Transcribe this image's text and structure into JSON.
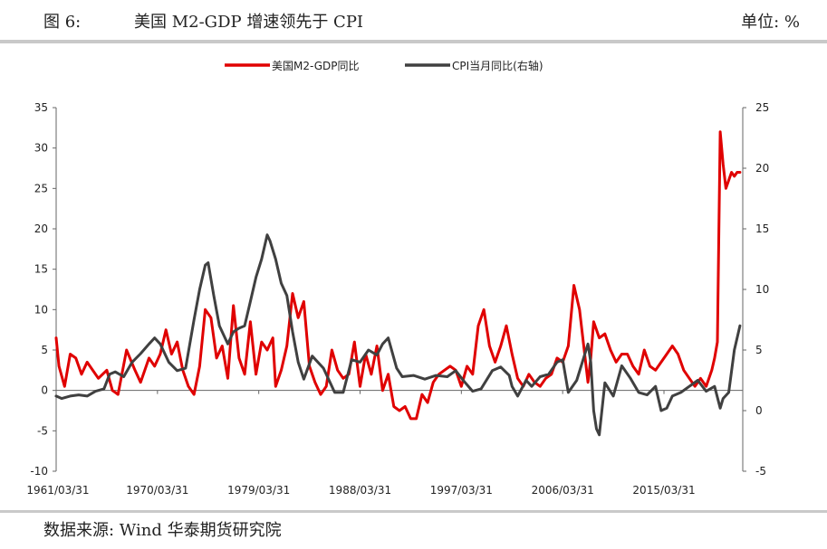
{
  "header": {
    "figure_no": "图 6:",
    "title": "美国 M2-GDP 增速领先于 CPI",
    "unit": "单位: %"
  },
  "footer": {
    "source": "数据来源: Wind 华泰期货研究院"
  },
  "chart_data": {
    "type": "line",
    "title": "美国 M2-GDP 增速领先于 CPI",
    "legend_position": "top-center",
    "grid": false,
    "x_range": [
      "1961/03/31",
      "2022/03/31"
    ],
    "x_tick_labels": [
      "1961/03/31",
      "1970/03/31",
      "1979/03/31",
      "1988/03/31",
      "1997/03/31",
      "2006/03/31",
      "2015/03/31"
    ],
    "x_ticks": [
      1961.25,
      1970.25,
      1979.25,
      1988.25,
      1997.25,
      2006.25,
      2015.25
    ],
    "left_axis": {
      "ylim": [
        -10,
        35
      ],
      "ticks": [
        -10,
        -5,
        0,
        5,
        10,
        15,
        20,
        25,
        30,
        35
      ]
    },
    "right_axis": {
      "ylim": [
        -5,
        25
      ],
      "ticks": [
        -5,
        0,
        5,
        10,
        15,
        20,
        25
      ]
    },
    "series": [
      {
        "name": "美国M2-GDP同比",
        "axis": "left",
        "color": "#e00000",
        "x": [
          1961.25,
          1961.5,
          1962.0,
          1962.5,
          1963.0,
          1963.5,
          1964.0,
          1965.0,
          1965.75,
          1966.25,
          1966.75,
          1967.5,
          1968.25,
          1968.75,
          1969.5,
          1970.0,
          1970.5,
          1971.0,
          1971.5,
          1972.0,
          1972.5,
          1973.0,
          1973.5,
          1974.0,
          1974.5,
          1975.0,
          1975.5,
          1976.0,
          1976.5,
          1977.0,
          1977.5,
          1978.0,
          1978.5,
          1979.0,
          1979.5,
          1980.0,
          1980.5,
          1980.75,
          1981.25,
          1981.75,
          1982.25,
          1982.75,
          1983.25,
          1983.75,
          1984.25,
          1984.75,
          1985.25,
          1985.75,
          1986.25,
          1986.75,
          1987.25,
          1987.75,
          1988.25,
          1988.75,
          1989.25,
          1989.75,
          1990.25,
          1990.75,
          1991.25,
          1991.75,
          1992.25,
          1992.75,
          1993.25,
          1993.75,
          1994.25,
          1994.75,
          1995.25,
          1995.75,
          1996.25,
          1996.75,
          1997.25,
          1997.75,
          1998.25,
          1998.75,
          1999.25,
          1999.75,
          2000.25,
          2000.75,
          2001.25,
          2001.75,
          2002.25,
          2002.75,
          2003.25,
          2003.75,
          2004.25,
          2004.75,
          2005.25,
          2005.75,
          2006.25,
          2006.75,
          2007.25,
          2007.75,
          2008.25,
          2008.5,
          2008.75,
          2009.0,
          2009.5,
          2010.0,
          2010.5,
          2011.0,
          2011.5,
          2012.0,
          2012.5,
          2013.0,
          2013.5,
          2014.0,
          2014.5,
          2015.0,
          2015.5,
          2016.0,
          2016.5,
          2017.0,
          2017.5,
          2018.0,
          2018.5,
          2019.0,
          2019.5,
          2019.75,
          2020.0,
          2020.25,
          2020.5,
          2020.75,
          2021.0,
          2021.25,
          2021.5,
          2021.75,
          2022.0
        ],
        "values": [
          6.5,
          3.0,
          0.5,
          4.5,
          4.0,
          2.0,
          3.5,
          1.5,
          2.5,
          0.0,
          -0.5,
          5.0,
          2.5,
          1.0,
          4.0,
          3.0,
          4.5,
          7.5,
          4.5,
          6.0,
          2.5,
          0.5,
          -0.5,
          3.0,
          10.0,
          9.0,
          4.0,
          5.5,
          1.5,
          10.5,
          4.0,
          2.0,
          8.5,
          2.0,
          6.0,
          5.0,
          6.5,
          0.5,
          2.5,
          5.5,
          12.0,
          9.0,
          11.0,
          3.0,
          1.0,
          -0.5,
          0.5,
          5.0,
          2.5,
          1.5,
          2.0,
          6.0,
          0.5,
          4.5,
          2.0,
          5.5,
          0.0,
          2.0,
          -2.0,
          -2.5,
          -2.0,
          -3.5,
          -3.5,
          -0.5,
          -1.5,
          1.0,
          2.0,
          2.5,
          3.0,
          2.5,
          0.5,
          3.0,
          2.0,
          8.0,
          10.0,
          5.5,
          3.5,
          5.5,
          8.0,
          4.5,
          1.5,
          0.5,
          2.0,
          1.0,
          0.5,
          1.5,
          2.0,
          4.0,
          3.5,
          5.5,
          13.0,
          10.0,
          4.0,
          1.0,
          4.0,
          8.5,
          6.5,
          7.0,
          5.0,
          3.5,
          4.5,
          4.5,
          3.0,
          2.0,
          5.0,
          3.0,
          2.5,
          3.5,
          4.5,
          5.5,
          4.5,
          2.5,
          1.5,
          0.5,
          1.5,
          0.5,
          2.5,
          4.0,
          6.0,
          32.0,
          28.0,
          25.0,
          26.0,
          27.0,
          26.5,
          27.0,
          27.0
        ]
      },
      {
        "name": "CPI当月同比(右轴)",
        "axis": "right",
        "color": "#404040",
        "x": [
          1961.25,
          1961.75,
          1962.5,
          1963.25,
          1964.0,
          1964.75,
          1965.5,
          1966.0,
          1966.5,
          1967.25,
          1968.0,
          1968.75,
          1969.5,
          1970.0,
          1970.5,
          1971.25,
          1972.0,
          1972.75,
          1973.5,
          1974.0,
          1974.5,
          1974.75,
          1975.25,
          1975.75,
          1976.5,
          1977.0,
          1977.5,
          1978.0,
          1978.5,
          1979.0,
          1979.5,
          1980.0,
          1980.25,
          1980.75,
          1981.25,
          1981.75,
          1982.25,
          1982.75,
          1983.25,
          1984.0,
          1985.0,
          1986.0,
          1986.75,
          1987.5,
          1988.25,
          1989.0,
          1989.75,
          1990.25,
          1990.75,
          1991.5,
          1992.0,
          1993.0,
          1994.0,
          1995.0,
          1996.0,
          1996.75,
          1997.5,
          1998.25,
          1999.0,
          2000.0,
          2000.75,
          2001.5,
          2001.75,
          2002.25,
          2003.0,
          2003.5,
          2004.25,
          2005.0,
          2005.75,
          2006.25,
          2006.75,
          2007.5,
          2008.0,
          2008.5,
          2008.75,
          2009.0,
          2009.25,
          2009.5,
          2010.0,
          2010.75,
          2011.5,
          2012.25,
          2013.0,
          2013.75,
          2014.5,
          2015.0,
          2015.5,
          2016.0,
          2016.75,
          2017.5,
          2018.25,
          2019.0,
          2019.75,
          2020.25,
          2020.5,
          2021.0,
          2021.5,
          2022.0
        ],
        "values": [
          1.2,
          1.0,
          1.2,
          1.3,
          1.2,
          1.6,
          1.8,
          3.0,
          3.2,
          2.8,
          4.0,
          4.7,
          5.5,
          6.0,
          5.5,
          4.0,
          3.3,
          3.5,
          7.5,
          10.0,
          12.0,
          12.2,
          9.5,
          7.0,
          5.5,
          6.5,
          6.8,
          7.0,
          9.0,
          11.0,
          12.5,
          14.5,
          14.0,
          12.5,
          10.5,
          9.5,
          6.5,
          4.0,
          2.6,
          4.5,
          3.5,
          1.5,
          1.5,
          4.2,
          4.0,
          5.0,
          4.6,
          5.5,
          6.0,
          3.5,
          2.8,
          2.9,
          2.6,
          2.9,
          2.8,
          3.3,
          2.4,
          1.6,
          1.8,
          3.3,
          3.6,
          2.9,
          2.0,
          1.2,
          2.5,
          2.0,
          2.8,
          3.0,
          4.0,
          4.2,
          1.5,
          2.5,
          4.0,
          5.5,
          4.0,
          0.0,
          -1.5,
          -2.0,
          2.3,
          1.2,
          3.7,
          2.7,
          1.5,
          1.3,
          2.0,
          0.0,
          0.2,
          1.2,
          1.5,
          2.0,
          2.5,
          1.6,
          2.0,
          0.2,
          1.0,
          1.5,
          5.0,
          7.0
        ]
      }
    ]
  }
}
